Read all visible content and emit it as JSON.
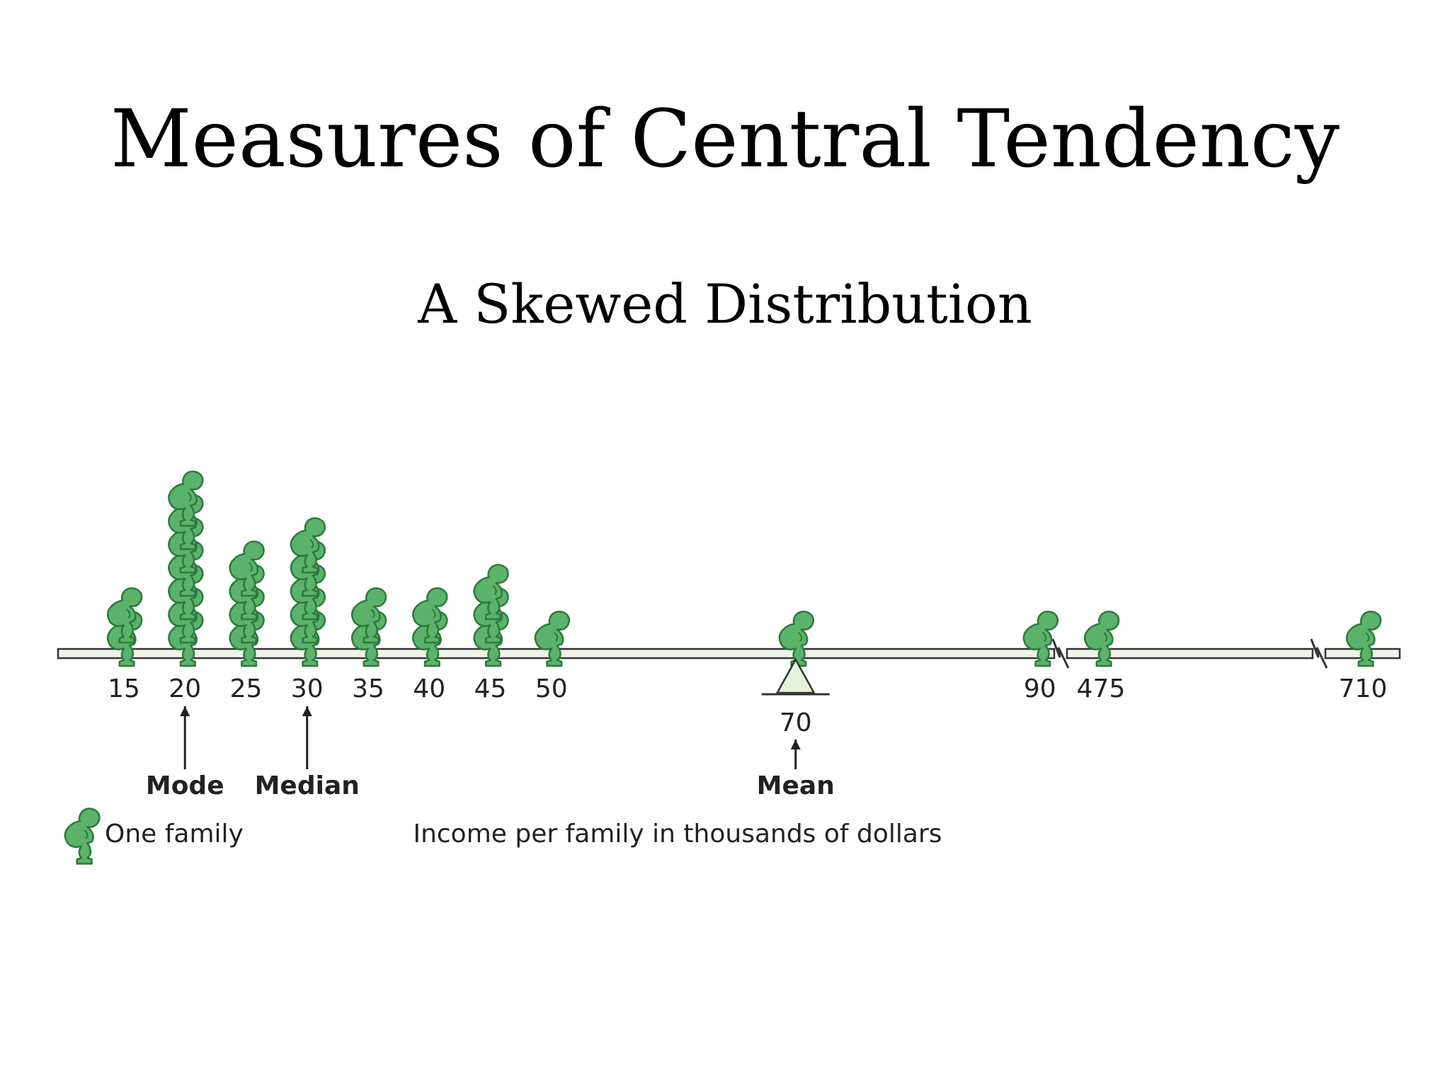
{
  "slide": {
    "title": "Measures of Central Tendency",
    "subtitle": "A Skewed Distribution"
  },
  "chart_data": {
    "type": "pictograph",
    "unit_icon": "family-icon",
    "unit_label": "One family",
    "xlabel": "Income per family in thousands of dollars",
    "points": [
      {
        "x": 15,
        "count": 2
      },
      {
        "x": 20,
        "count": 7
      },
      {
        "x": 25,
        "count": 4
      },
      {
        "x": 30,
        "count": 5
      },
      {
        "x": 35,
        "count": 2
      },
      {
        "x": 40,
        "count": 2
      },
      {
        "x": 45,
        "count": 3
      },
      {
        "x": 50,
        "count": 1
      },
      {
        "x": 70,
        "count": 1
      },
      {
        "x": 90,
        "count": 1
      },
      {
        "x": 475,
        "count": 1
      },
      {
        "x": 710,
        "count": 1
      }
    ],
    "tick_labels": [
      "15",
      "20",
      "25",
      "30",
      "35",
      "40",
      "45",
      "50",
      "90",
      "475",
      "710"
    ],
    "axis_breaks": true,
    "annotations": [
      {
        "label": "Mode",
        "value": 20
      },
      {
        "label": "Median",
        "value": 30
      },
      {
        "label": "Mean",
        "value": 70,
        "value_label": "70",
        "fulcrum": true
      }
    ],
    "colors": {
      "figure": "#5bb36b",
      "figure_outline": "#2d7a3c",
      "beam": "#eef5e8",
      "beam_outline": "#333333",
      "fulcrum": "#e6f2dc"
    }
  }
}
